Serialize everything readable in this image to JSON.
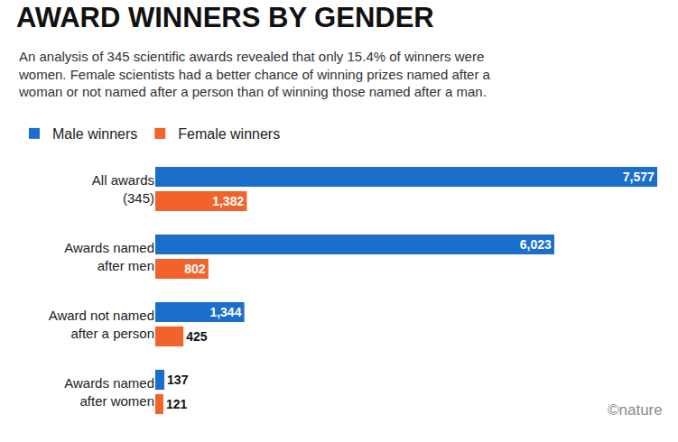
{
  "chart_data": {
    "type": "bar",
    "orientation": "horizontal",
    "title": "AWARD WINNERS BY GENDER",
    "subtitle": [
      "An analysis of 345 scientific awards revealed that only 15.4% of winners were",
      "women. Female scientists had a better chance of winning prizes named after a",
      "woman or not named after a person than of winning those named after a man."
    ],
    "annotations": [
      "©nature"
    ],
    "categories": [
      "All awards\n(345)",
      "Awards named\nafter men",
      "Award not named\nafter a person",
      "Awards named\nafter women"
    ],
    "series": [
      {
        "name": "Male winners",
        "color": "#1b6ecb",
        "values": [
          7577,
          6023,
          1344,
          137
        ],
        "value_labels": [
          "7,577",
          "6,023",
          "1,344",
          "137"
        ]
      },
      {
        "name": "Female winners",
        "color": "#f2622b",
        "values": [
          1382,
          802,
          425,
          121
        ],
        "value_labels": [
          "1,382",
          "802",
          "425",
          "121"
        ]
      }
    ],
    "xlim": [
      0,
      7577
    ],
    "grid": false,
    "legend": "top-left",
    "data_labels": true,
    "tick_labels": "y"
  }
}
